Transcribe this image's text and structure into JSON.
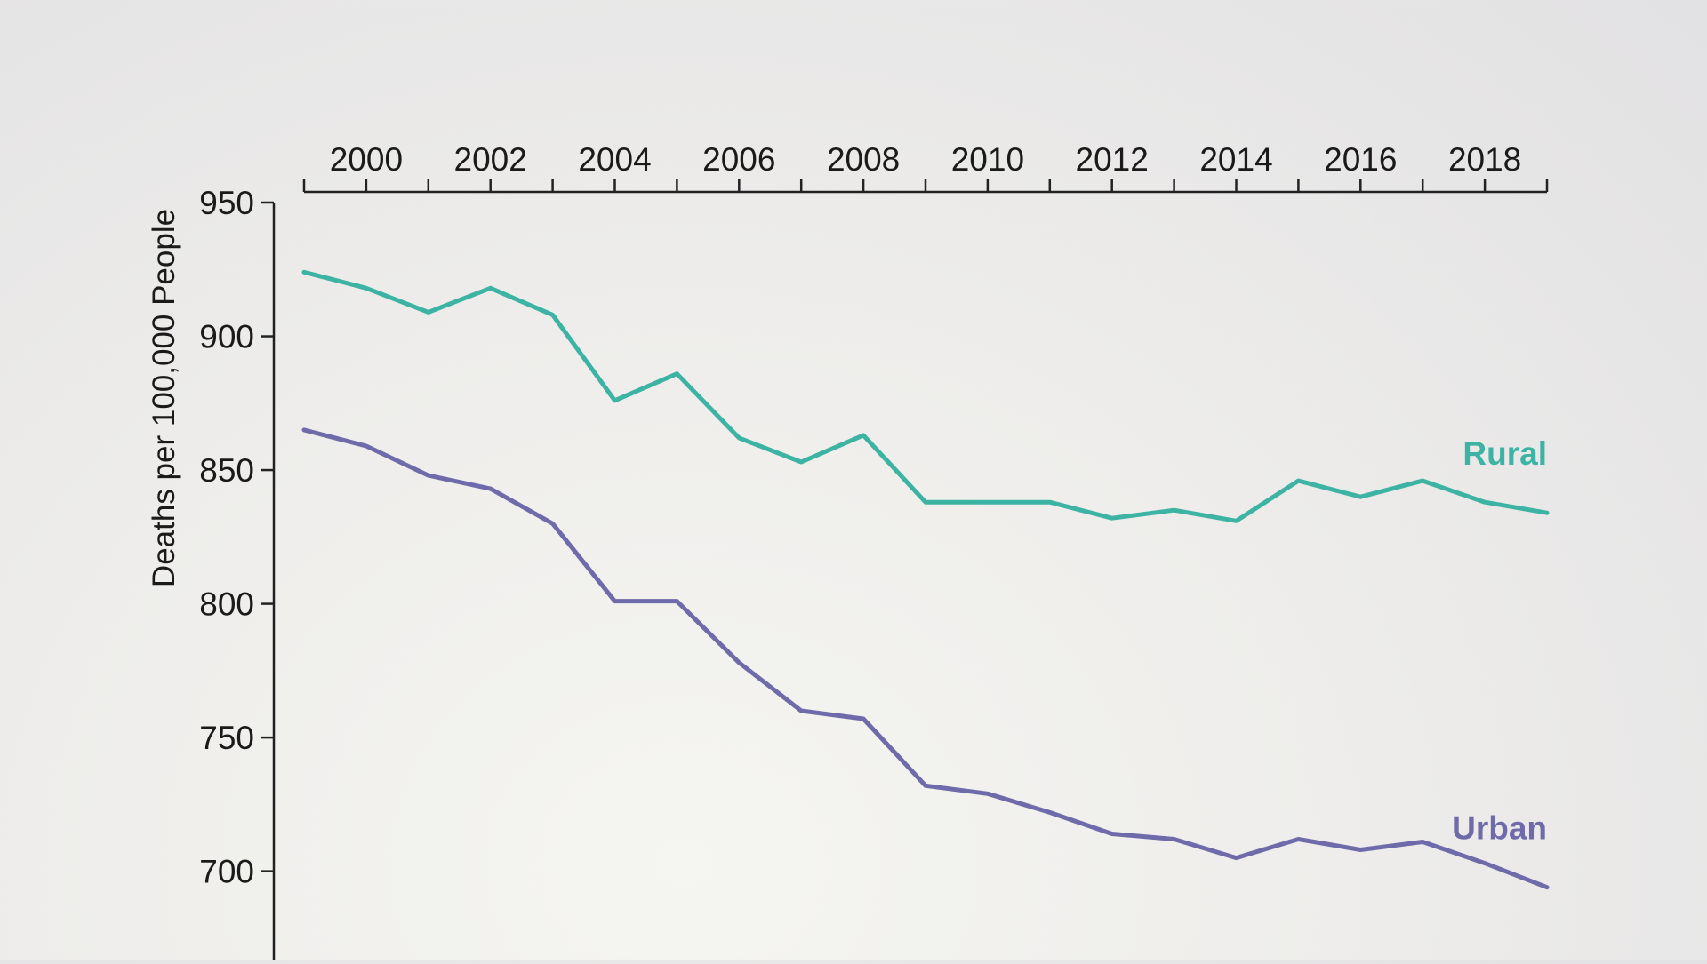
{
  "chart_data": {
    "type": "line",
    "title": "",
    "xlabel": "",
    "ylabel": "Deaths per 100,000 People",
    "x": [
      1999,
      2000,
      2001,
      2002,
      2003,
      2004,
      2005,
      2006,
      2007,
      2008,
      2009,
      2010,
      2011,
      2012,
      2013,
      2014,
      2015,
      2016,
      2017,
      2018,
      2019
    ],
    "xticks": [
      "2000",
      "2002",
      "2004",
      "2006",
      "2008",
      "2010",
      "2012",
      "2014",
      "2016",
      "2018"
    ],
    "xtick_values": [
      2000,
      2002,
      2004,
      2006,
      2008,
      2010,
      2012,
      2014,
      2016,
      2018
    ],
    "yticks": [
      "950",
      "900",
      "850",
      "800",
      "750",
      "700"
    ],
    "ytick_values": [
      950,
      900,
      850,
      800,
      750,
      700
    ],
    "xlim": [
      1999,
      2019
    ],
    "ylim": [
      665,
      950
    ],
    "xaxis_position": "top",
    "series": [
      {
        "name": "Rural",
        "color": "#3db3a3",
        "values": [
          924,
          918,
          909,
          918,
          908,
          876,
          886,
          862,
          853,
          863,
          838,
          838,
          838,
          832,
          835,
          831,
          846,
          840,
          846,
          838,
          834
        ]
      },
      {
        "name": "Urban",
        "color": "#6f6aaa",
        "values": [
          865,
          859,
          848,
          843,
          830,
          801,
          801,
          778,
          760,
          757,
          732,
          729,
          722,
          714,
          712,
          705,
          712,
          708,
          711,
          703,
          694
        ]
      }
    ]
  }
}
